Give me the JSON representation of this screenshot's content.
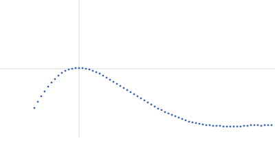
{
  "chart_data": {
    "type": "scatter",
    "color": "#3b67b0",
    "grid": true,
    "tick_labels": false,
    "xlim": [
      0,
      6
    ],
    "ylim": [
      0,
      2.2
    ],
    "xticks": [
      1.725
    ],
    "yticks": [
      1.1
    ],
    "x": [
      0.75,
      0.825,
      0.9,
      0.975,
      1.05,
      1.125,
      1.2,
      1.275,
      1.35,
      1.425,
      1.5,
      1.575,
      1.65,
      1.725,
      1.8,
      1.875,
      1.95,
      2.025,
      2.1,
      2.175,
      2.25,
      2.325,
      2.4,
      2.475,
      2.55,
      2.625,
      2.7,
      2.775,
      2.85,
      2.925,
      3.0,
      3.075,
      3.15,
      3.225,
      3.3,
      3.375,
      3.45,
      3.525,
      3.6,
      3.675,
      3.75,
      3.825,
      3.9,
      3.975,
      4.05,
      4.125,
      4.2,
      4.275,
      4.35,
      4.425,
      4.5,
      4.575,
      4.65,
      4.725,
      4.8,
      4.875,
      4.95,
      5.025,
      5.1,
      5.175,
      5.25,
      5.325,
      5.4,
      5.475,
      5.55,
      5.625,
      5.7,
      5.775,
      5.85,
      5.925
    ],
    "values": [
      0.473,
      0.572,
      0.66,
      0.737,
      0.814,
      0.88,
      0.935,
      0.99,
      1.034,
      1.067,
      1.089,
      1.1,
      1.111,
      1.111,
      1.111,
      1.1,
      1.089,
      1.067,
      1.045,
      1.023,
      0.99,
      0.957,
      0.924,
      0.891,
      0.858,
      0.825,
      0.792,
      0.759,
      0.726,
      0.693,
      0.66,
      0.627,
      0.594,
      0.561,
      0.528,
      0.495,
      0.462,
      0.44,
      0.407,
      0.385,
      0.363,
      0.341,
      0.319,
      0.297,
      0.275,
      0.253,
      0.242,
      0.231,
      0.22,
      0.209,
      0.198,
      0.198,
      0.187,
      0.187,
      0.187,
      0.176,
      0.176,
      0.176,
      0.176,
      0.176,
      0.176,
      0.187,
      0.187,
      0.198,
      0.198,
      0.198,
      0.187,
      0.198,
      0.198,
      0.198
    ]
  }
}
